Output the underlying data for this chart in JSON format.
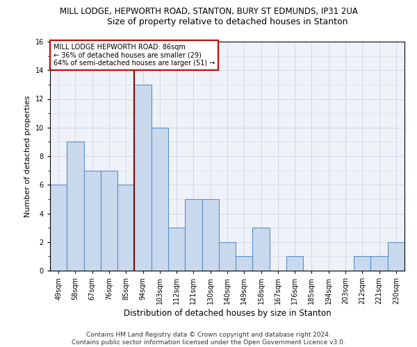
{
  "title1": "MILL LODGE, HEPWORTH ROAD, STANTON, BURY ST EDMUNDS, IP31 2UA",
  "title2": "Size of property relative to detached houses in Stanton",
  "xlabel": "Distribution of detached houses by size in Stanton",
  "ylabel": "Number of detached properties",
  "categories": [
    "49sqm",
    "58sqm",
    "67sqm",
    "76sqm",
    "85sqm",
    "94sqm",
    "103sqm",
    "112sqm",
    "121sqm",
    "130sqm",
    "140sqm",
    "149sqm",
    "158sqm",
    "167sqm",
    "176sqm",
    "185sqm",
    "194sqm",
    "203sqm",
    "212sqm",
    "221sqm",
    "230sqm"
  ],
  "values": [
    6,
    9,
    7,
    7,
    6,
    13,
    10,
    3,
    5,
    5,
    2,
    1,
    3,
    0,
    1,
    0,
    0,
    0,
    1,
    1,
    2
  ],
  "bar_color": "#c9d9ed",
  "bar_edge_color": "#5b8ec4",
  "highlight_index": 4,
  "highlight_line_color": "#8b0000",
  "annotation_box_text": "MILL LODGE HEPWORTH ROAD: 86sqm\n← 36% of detached houses are smaller (29)\n64% of semi-detached houses are larger (51) →",
  "annotation_box_color": "#ffffff",
  "annotation_box_edge_color": "#cc0000",
  "ylim": [
    0,
    16
  ],
  "yticks": [
    0,
    2,
    4,
    6,
    8,
    10,
    12,
    14,
    16
  ],
  "grid_color": "#d0d8e8",
  "footer_text": "Contains HM Land Registry data © Crown copyright and database right 2024.\nContains public sector information licensed under the Open Government Licence v3.0.",
  "title1_fontsize": 8.5,
  "title2_fontsize": 9,
  "xlabel_fontsize": 8.5,
  "ylabel_fontsize": 8,
  "tick_fontsize": 7,
  "annotation_fontsize": 7,
  "footer_fontsize": 6.5,
  "bg_color": "#ffffff",
  "plot_bg_color": "#eef2f8"
}
